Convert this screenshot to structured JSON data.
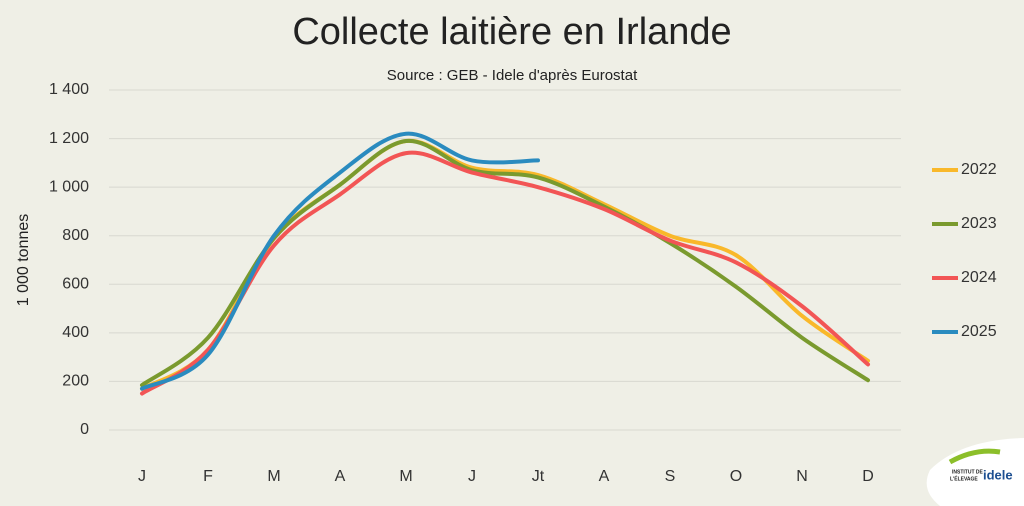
{
  "chart_data": {
    "type": "line",
    "title": "Collecte laitière en Irlande",
    "subtitle": "Source : GEB - Idele d'après  Eurostat",
    "y_label": "1 000 tonnes",
    "categories": [
      "J",
      "F",
      "M",
      "A",
      "M",
      "J",
      "Jt",
      "A",
      "S",
      "O",
      "N",
      "D"
    ],
    "series": [
      {
        "name": "2022",
        "color": "#f9b82a",
        "values": [
          170,
          330,
          790,
          1010,
          1190,
          1080,
          1050,
          930,
          800,
          720,
          470,
          285
        ]
      },
      {
        "name": "2023",
        "color": "#7a9a2e",
        "values": [
          185,
          380,
          790,
          1010,
          1190,
          1070,
          1040,
          920,
          770,
          590,
          380,
          205
        ]
      },
      {
        "name": "2024",
        "color": "#f25555",
        "values": [
          150,
          330,
          760,
          970,
          1140,
          1060,
          1000,
          910,
          780,
          690,
          510,
          270
        ]
      },
      {
        "name": "2025",
        "color": "#2a8bbf",
        "values": [
          170,
          310,
          800,
          1060,
          1220,
          1110,
          1110,
          null,
          null,
          null,
          null,
          null
        ]
      }
    ],
    "ylim": [
      0,
      1400
    ],
    "yticks": [
      0,
      200,
      400,
      600,
      800,
      {
        "value": 1000,
        "label": "1 000"
      },
      {
        "value": 1200,
        "label": "1 200"
      },
      {
        "value": 1400,
        "label": "1 400"
      }
    ],
    "grid": true,
    "legend": "right"
  },
  "logo": {
    "line1": "INSTITUT DE",
    "line2": "L'ÉLEVAGE",
    "brand": "idele"
  }
}
